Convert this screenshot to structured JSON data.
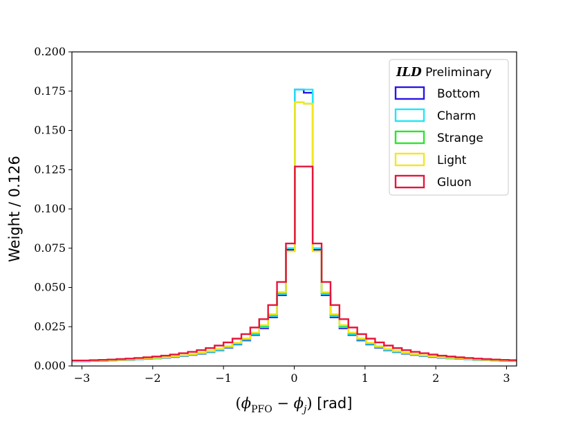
{
  "chart_data": {
    "type": "line",
    "drawstyle": "steps",
    "xlabel": "(ϕPFO − ϕj) [rad]",
    "xlabel_parts": {
      "open": "(",
      "phi1": "ϕ",
      "sub1": "PFO",
      "minus": " − ",
      "phi2": "ϕ",
      "sub2": "j",
      "close": ")",
      "unit": " [rad]"
    },
    "ylabel": "Weight / 0.126",
    "xlim": [
      -3.1416,
      3.1416
    ],
    "ylim": [
      0,
      0.2
    ],
    "xticks": [
      -3,
      -2,
      -1,
      0,
      1,
      2,
      3
    ],
    "xtick_labels": [
      "−3",
      "−2",
      "−1",
      "0",
      "1",
      "2",
      "3"
    ],
    "yticks": [
      0.0,
      0.025,
      0.05,
      0.075,
      0.1,
      0.125,
      0.15,
      0.175,
      0.2
    ],
    "ytick_labels": [
      "0.000",
      "0.025",
      "0.050",
      "0.075",
      "0.100",
      "0.125",
      "0.150",
      "0.175",
      "0.200"
    ],
    "bin_width": 0.126,
    "x_edges_start": -3.1416,
    "legend": {
      "title_bold": "ILD",
      "title_rest": " Preliminary",
      "position": "top-right"
    },
    "series": [
      {
        "name": "Bottom",
        "color": "#2a14e6",
        "values": [
          0.003,
          0.003,
          0.0032,
          0.0033,
          0.0035,
          0.0037,
          0.0039,
          0.0042,
          0.0045,
          0.0048,
          0.0052,
          0.0057,
          0.0063,
          0.007,
          0.0078,
          0.0088,
          0.01,
          0.0116,
          0.0137,
          0.0163,
          0.0197,
          0.024,
          0.031,
          0.045,
          0.074,
          0.176,
          0.174,
          0.074,
          0.045,
          0.031,
          0.024,
          0.0197,
          0.0163,
          0.0137,
          0.0116,
          0.01,
          0.0088,
          0.0078,
          0.007,
          0.0063,
          0.0057,
          0.0052,
          0.0048,
          0.0045,
          0.0042,
          0.0039,
          0.0037,
          0.0035,
          0.0033,
          0.0032
        ]
      },
      {
        "name": "Charm",
        "color": "#1ee6f5",
        "values": [
          0.0031,
          0.0031,
          0.0033,
          0.0034,
          0.0036,
          0.0038,
          0.004,
          0.0043,
          0.0046,
          0.0049,
          0.0054,
          0.0059,
          0.0065,
          0.0072,
          0.008,
          0.009,
          0.0103,
          0.0119,
          0.014,
          0.0167,
          0.0202,
          0.0247,
          0.0318,
          0.0458,
          0.075,
          0.176,
          0.176,
          0.075,
          0.0458,
          0.0318,
          0.0247,
          0.0202,
          0.0167,
          0.014,
          0.0119,
          0.0103,
          0.009,
          0.008,
          0.0072,
          0.0065,
          0.0059,
          0.0054,
          0.0049,
          0.0046,
          0.0043,
          0.004,
          0.0038,
          0.0036,
          0.0034,
          0.0033
        ]
      },
      {
        "name": "Strange",
        "color": "#2ae62a",
        "values": [
          0.0031,
          0.0032,
          0.0033,
          0.0035,
          0.0037,
          0.0039,
          0.0041,
          0.0044,
          0.0047,
          0.0051,
          0.0055,
          0.0061,
          0.0067,
          0.0074,
          0.0083,
          0.0093,
          0.0106,
          0.0123,
          0.0145,
          0.0172,
          0.0208,
          0.0255,
          0.0325,
          0.0465,
          0.073,
          0.168,
          0.167,
          0.073,
          0.0465,
          0.0325,
          0.0255,
          0.0208,
          0.0172,
          0.0145,
          0.0123,
          0.0106,
          0.0093,
          0.0083,
          0.0074,
          0.0067,
          0.0061,
          0.0055,
          0.0051,
          0.0047,
          0.0044,
          0.0041,
          0.0039,
          0.0037,
          0.0035,
          0.0033
        ]
      },
      {
        "name": "Light",
        "color": "#f5e61e",
        "values": [
          0.0032,
          0.0032,
          0.0034,
          0.0035,
          0.0037,
          0.0039,
          0.0042,
          0.0045,
          0.0048,
          0.0052,
          0.0056,
          0.0062,
          0.0068,
          0.0076,
          0.0085,
          0.0095,
          0.0108,
          0.0126,
          0.0148,
          0.0176,
          0.0213,
          0.026,
          0.033,
          0.047,
          0.073,
          0.168,
          0.167,
          0.073,
          0.047,
          0.033,
          0.026,
          0.0213,
          0.0176,
          0.0148,
          0.0126,
          0.0108,
          0.0095,
          0.0085,
          0.0076,
          0.0068,
          0.0062,
          0.0056,
          0.0052,
          0.0048,
          0.0045,
          0.0042,
          0.0039,
          0.0037,
          0.0035,
          0.0034
        ]
      },
      {
        "name": "Gluon",
        "color": "#e6143c",
        "values": [
          0.0035,
          0.0035,
          0.0037,
          0.0039,
          0.0041,
          0.0044,
          0.0047,
          0.0051,
          0.0055,
          0.006,
          0.0066,
          0.0073,
          0.0081,
          0.009,
          0.0101,
          0.0114,
          0.013,
          0.015,
          0.0174,
          0.0203,
          0.0245,
          0.0298,
          0.0388,
          0.0535,
          0.078,
          0.127,
          0.127,
          0.078,
          0.0535,
          0.0388,
          0.0298,
          0.0245,
          0.0203,
          0.0174,
          0.015,
          0.013,
          0.0114,
          0.0101,
          0.009,
          0.0081,
          0.0073,
          0.0066,
          0.006,
          0.0055,
          0.0051,
          0.0047,
          0.0044,
          0.0041,
          0.0039,
          0.0037
        ]
      }
    ]
  }
}
